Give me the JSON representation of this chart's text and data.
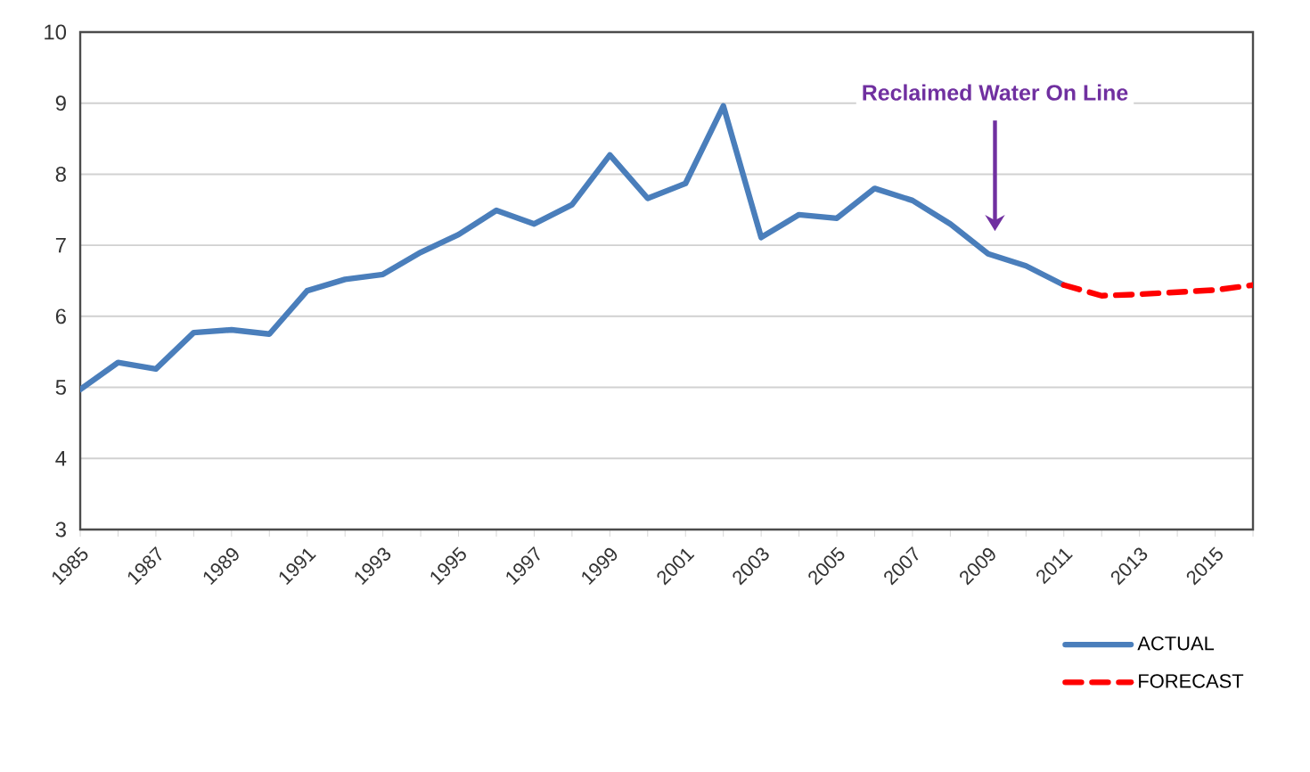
{
  "chart_data": {
    "type": "line",
    "xlim": [
      1985,
      2016
    ],
    "xticks": [
      {
        "value": 1985,
        "label": "1985"
      },
      {
        "value": 1986,
        "label": null
      },
      {
        "value": 1987,
        "label": "1987"
      },
      {
        "value": 1988,
        "label": null
      },
      {
        "value": 1989,
        "label": "1989"
      },
      {
        "value": 1990,
        "label": null
      },
      {
        "value": 1991,
        "label": "1991"
      },
      {
        "value": 1992,
        "label": null
      },
      {
        "value": 1993,
        "label": "1993"
      },
      {
        "value": 1994,
        "label": null
      },
      {
        "value": 1995,
        "label": "1995"
      },
      {
        "value": 1996,
        "label": null
      },
      {
        "value": 1997,
        "label": "1997"
      },
      {
        "value": 1998,
        "label": null
      },
      {
        "value": 1999,
        "label": "1999"
      },
      {
        "value": 2000,
        "label": null
      },
      {
        "value": 2001,
        "label": "2001"
      },
      {
        "value": 2002,
        "label": null
      },
      {
        "value": 2003,
        "label": "2003"
      },
      {
        "value": 2004,
        "label": null
      },
      {
        "value": 2005,
        "label": "2005"
      },
      {
        "value": 2006,
        "label": null
      },
      {
        "value": 2007,
        "label": "2007"
      },
      {
        "value": 2008,
        "label": null
      },
      {
        "value": 2009,
        "label": "2009"
      },
      {
        "value": 2010,
        "label": null
      },
      {
        "value": 2011,
        "label": "2011"
      },
      {
        "value": 2012,
        "label": null
      },
      {
        "value": 2013,
        "label": "2013"
      },
      {
        "value": 2014,
        "label": null
      },
      {
        "value": 2015,
        "label": "2015"
      },
      {
        "value": 2016,
        "label": null
      }
    ],
    "ylim": [
      3,
      10
    ],
    "yticks": [
      3,
      4,
      5,
      6,
      7,
      8,
      9,
      10
    ],
    "grid": "y",
    "legend": "bottom right",
    "series": [
      {
        "name": "ACTUAL",
        "color": "#4a7ebb",
        "line_style": "solid",
        "x": [
          1985,
          1986,
          1987,
          1988,
          1989,
          1990,
          1991,
          1992,
          1993,
          1994,
          1995,
          1996,
          1997,
          1998,
          1999,
          2000,
          2001,
          2002,
          2003,
          2004,
          2005,
          2006,
          2007,
          2008,
          2009,
          2010,
          2011
        ],
        "values": [
          4.97,
          5.35,
          5.26,
          5.77,
          5.81,
          5.75,
          6.36,
          6.52,
          6.59,
          6.9,
          7.15,
          7.49,
          7.3,
          7.57,
          8.27,
          7.66,
          7.87,
          8.96,
          7.11,
          7.43,
          7.38,
          7.8,
          7.63,
          7.3,
          6.88,
          6.71,
          6.44
        ]
      },
      {
        "name": "FORECAST",
        "color": "#ff0000",
        "line_style": "dashed",
        "x": [
          2011,
          2012,
          2013,
          2014,
          2015,
          2016
        ],
        "values": [
          6.44,
          6.29,
          6.31,
          6.34,
          6.37,
          6.44
        ]
      }
    ],
    "annotations": [
      "Reclaimed Water On Line"
    ]
  }
}
